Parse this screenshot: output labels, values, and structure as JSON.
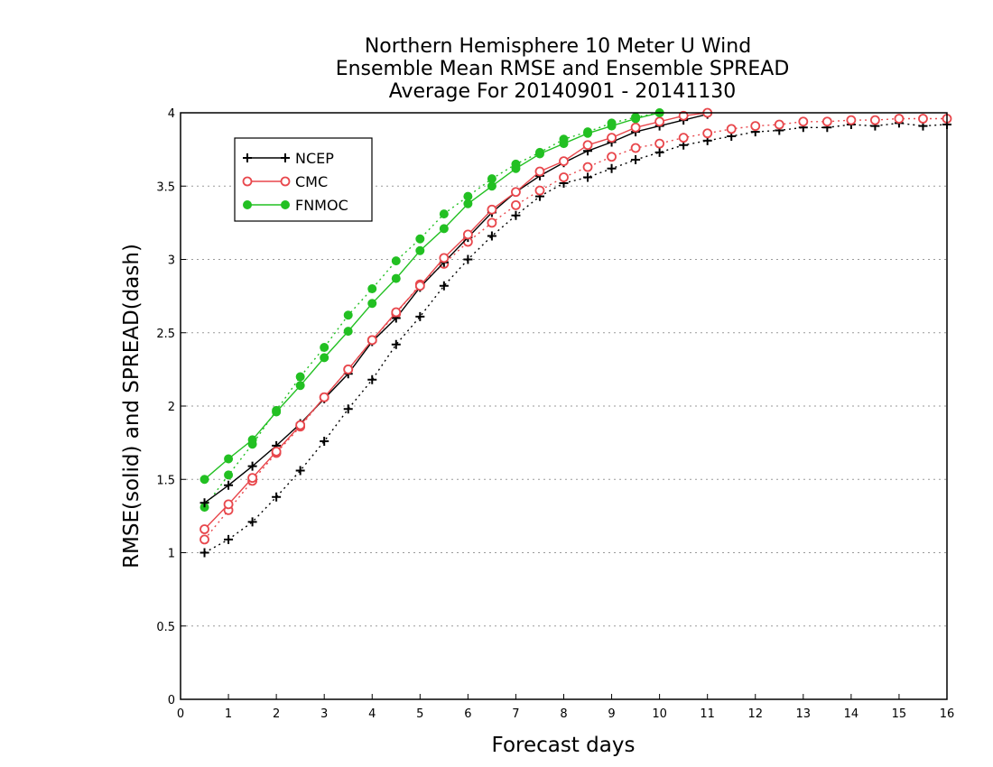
{
  "chart_data": {
    "type": "line",
    "title": [
      "Northern Hemisphere 10 Meter U Wind",
      "Ensemble Mean RMSE and Ensemble SPREAD",
      "Average For 20140901 - 20141130"
    ],
    "xlabel": "Forecast days",
    "ylabel": "RMSE(solid) and SPREAD(dash)",
    "xlim": [
      0,
      16
    ],
    "ylim": [
      0,
      4
    ],
    "xticks": [
      "0",
      "1",
      "2",
      "3",
      "4",
      "5",
      "6",
      "7",
      "8",
      "9",
      "10",
      "11",
      "12",
      "13",
      "14",
      "15",
      "16"
    ],
    "yticks": [
      "0",
      "0.5",
      "1",
      "1.5",
      "2",
      "2.5",
      "3",
      "3.5",
      "4"
    ],
    "grid": true,
    "legend_position": "top-left",
    "series": [
      {
        "name": "NCEP",
        "color": "#000000",
        "marker": "plus",
        "metric": "RMSE",
        "linestyle": "solid",
        "x": [
          0.5,
          1,
          1.5,
          2,
          2.5,
          3,
          3.5,
          4,
          4.5,
          5,
          5.5,
          6,
          6.5,
          7,
          7.5,
          8,
          8.5,
          9,
          9.5,
          10,
          10.5,
          11
        ],
        "y": [
          1.34,
          1.46,
          1.59,
          1.73,
          1.88,
          2.05,
          2.22,
          2.44,
          2.6,
          2.81,
          2.98,
          3.15,
          3.32,
          3.46,
          3.57,
          3.66,
          3.74,
          3.8,
          3.87,
          3.91,
          3.95,
          3.99
        ]
      },
      {
        "name": "NCEP",
        "color": "#000000",
        "marker": "plus",
        "metric": "SPREAD",
        "linestyle": "dotted",
        "x": [
          0.5,
          1,
          1.5,
          2,
          2.5,
          3,
          3.5,
          4,
          4.5,
          5,
          5.5,
          6,
          6.5,
          7,
          7.5,
          8,
          8.5,
          9,
          9.5,
          10,
          10.5,
          11,
          11.5,
          12,
          12.5,
          13,
          13.5,
          14,
          14.5,
          15,
          15.5,
          16
        ],
        "y": [
          1.0,
          1.09,
          1.21,
          1.38,
          1.56,
          1.76,
          1.98,
          2.18,
          2.42,
          2.61,
          2.82,
          3.0,
          3.16,
          3.3,
          3.43,
          3.52,
          3.56,
          3.62,
          3.68,
          3.73,
          3.78,
          3.81,
          3.84,
          3.87,
          3.88,
          3.9,
          3.9,
          3.92,
          3.91,
          3.93,
          3.91,
          3.92
        ]
      },
      {
        "name": "CMC",
        "color": "#e8474c",
        "marker": "circle",
        "metric": "RMSE",
        "linestyle": "solid",
        "x": [
          0.5,
          1,
          1.5,
          2,
          2.5,
          3,
          3.5,
          4,
          4.5,
          5,
          5.5,
          6,
          6.5,
          7,
          7.5,
          8,
          8.5,
          9,
          9.5,
          10,
          10.5,
          11
        ],
        "y": [
          1.16,
          1.33,
          1.51,
          1.69,
          1.87,
          2.06,
          2.25,
          2.45,
          2.64,
          2.82,
          3.01,
          3.17,
          3.34,
          3.46,
          3.6,
          3.67,
          3.78,
          3.83,
          3.9,
          3.94,
          3.98,
          4.0
        ]
      },
      {
        "name": "CMC",
        "color": "#e8474c",
        "marker": "circle",
        "metric": "SPREAD",
        "linestyle": "dotted",
        "x": [
          0.5,
          1,
          1.5,
          2,
          2.5,
          3,
          3.5,
          4,
          4.5,
          5,
          5.5,
          6,
          6.5,
          7,
          7.5,
          8,
          8.5,
          9,
          9.5,
          10,
          10.5,
          11,
          11.5,
          12,
          12.5,
          13,
          13.5,
          14,
          14.5,
          15,
          15.5,
          16
        ],
        "y": [
          1.09,
          1.29,
          1.49,
          1.68,
          1.86,
          2.06,
          2.25,
          2.45,
          2.63,
          2.83,
          2.97,
          3.12,
          3.25,
          3.37,
          3.47,
          3.56,
          3.63,
          3.7,
          3.76,
          3.79,
          3.83,
          3.86,
          3.89,
          3.91,
          3.92,
          3.94,
          3.94,
          3.95,
          3.95,
          3.96,
          3.96,
          3.96
        ]
      },
      {
        "name": "FNMOC",
        "color": "#22c022",
        "marker": "filled-circle",
        "metric": "RMSE",
        "linestyle": "solid",
        "x": [
          0.5,
          1,
          1.5,
          2,
          2.5,
          3,
          3.5,
          4,
          4.5,
          5,
          5.5,
          6,
          6.5,
          7,
          7.5,
          8,
          8.5,
          9,
          9.5,
          10
        ],
        "y": [
          1.5,
          1.64,
          1.77,
          1.96,
          2.14,
          2.33,
          2.51,
          2.7,
          2.87,
          3.06,
          3.21,
          3.38,
          3.5,
          3.62,
          3.72,
          3.79,
          3.86,
          3.91,
          3.96,
          4.0
        ]
      },
      {
        "name": "FNMOC",
        "color": "#22c022",
        "marker": "filled-circle",
        "metric": "SPREAD",
        "linestyle": "dotted",
        "x": [
          0.5,
          1,
          1.5,
          2,
          2.5,
          3,
          3.5,
          4,
          4.5,
          5,
          5.5,
          6,
          6.5,
          7,
          7.5,
          8,
          8.5,
          9,
          9.5,
          10
        ],
        "y": [
          1.31,
          1.53,
          1.74,
          1.97,
          2.2,
          2.4,
          2.62,
          2.8,
          2.99,
          3.14,
          3.31,
          3.43,
          3.55,
          3.65,
          3.73,
          3.82,
          3.87,
          3.93,
          3.97,
          4.0
        ]
      }
    ],
    "legend": [
      {
        "label": "NCEP",
        "color": "#000000",
        "marker": "plus"
      },
      {
        "label": "CMC",
        "color": "#e8474c",
        "marker": "circle"
      },
      {
        "label": "FNMOC",
        "color": "#22c022",
        "marker": "filled-circle"
      }
    ]
  }
}
